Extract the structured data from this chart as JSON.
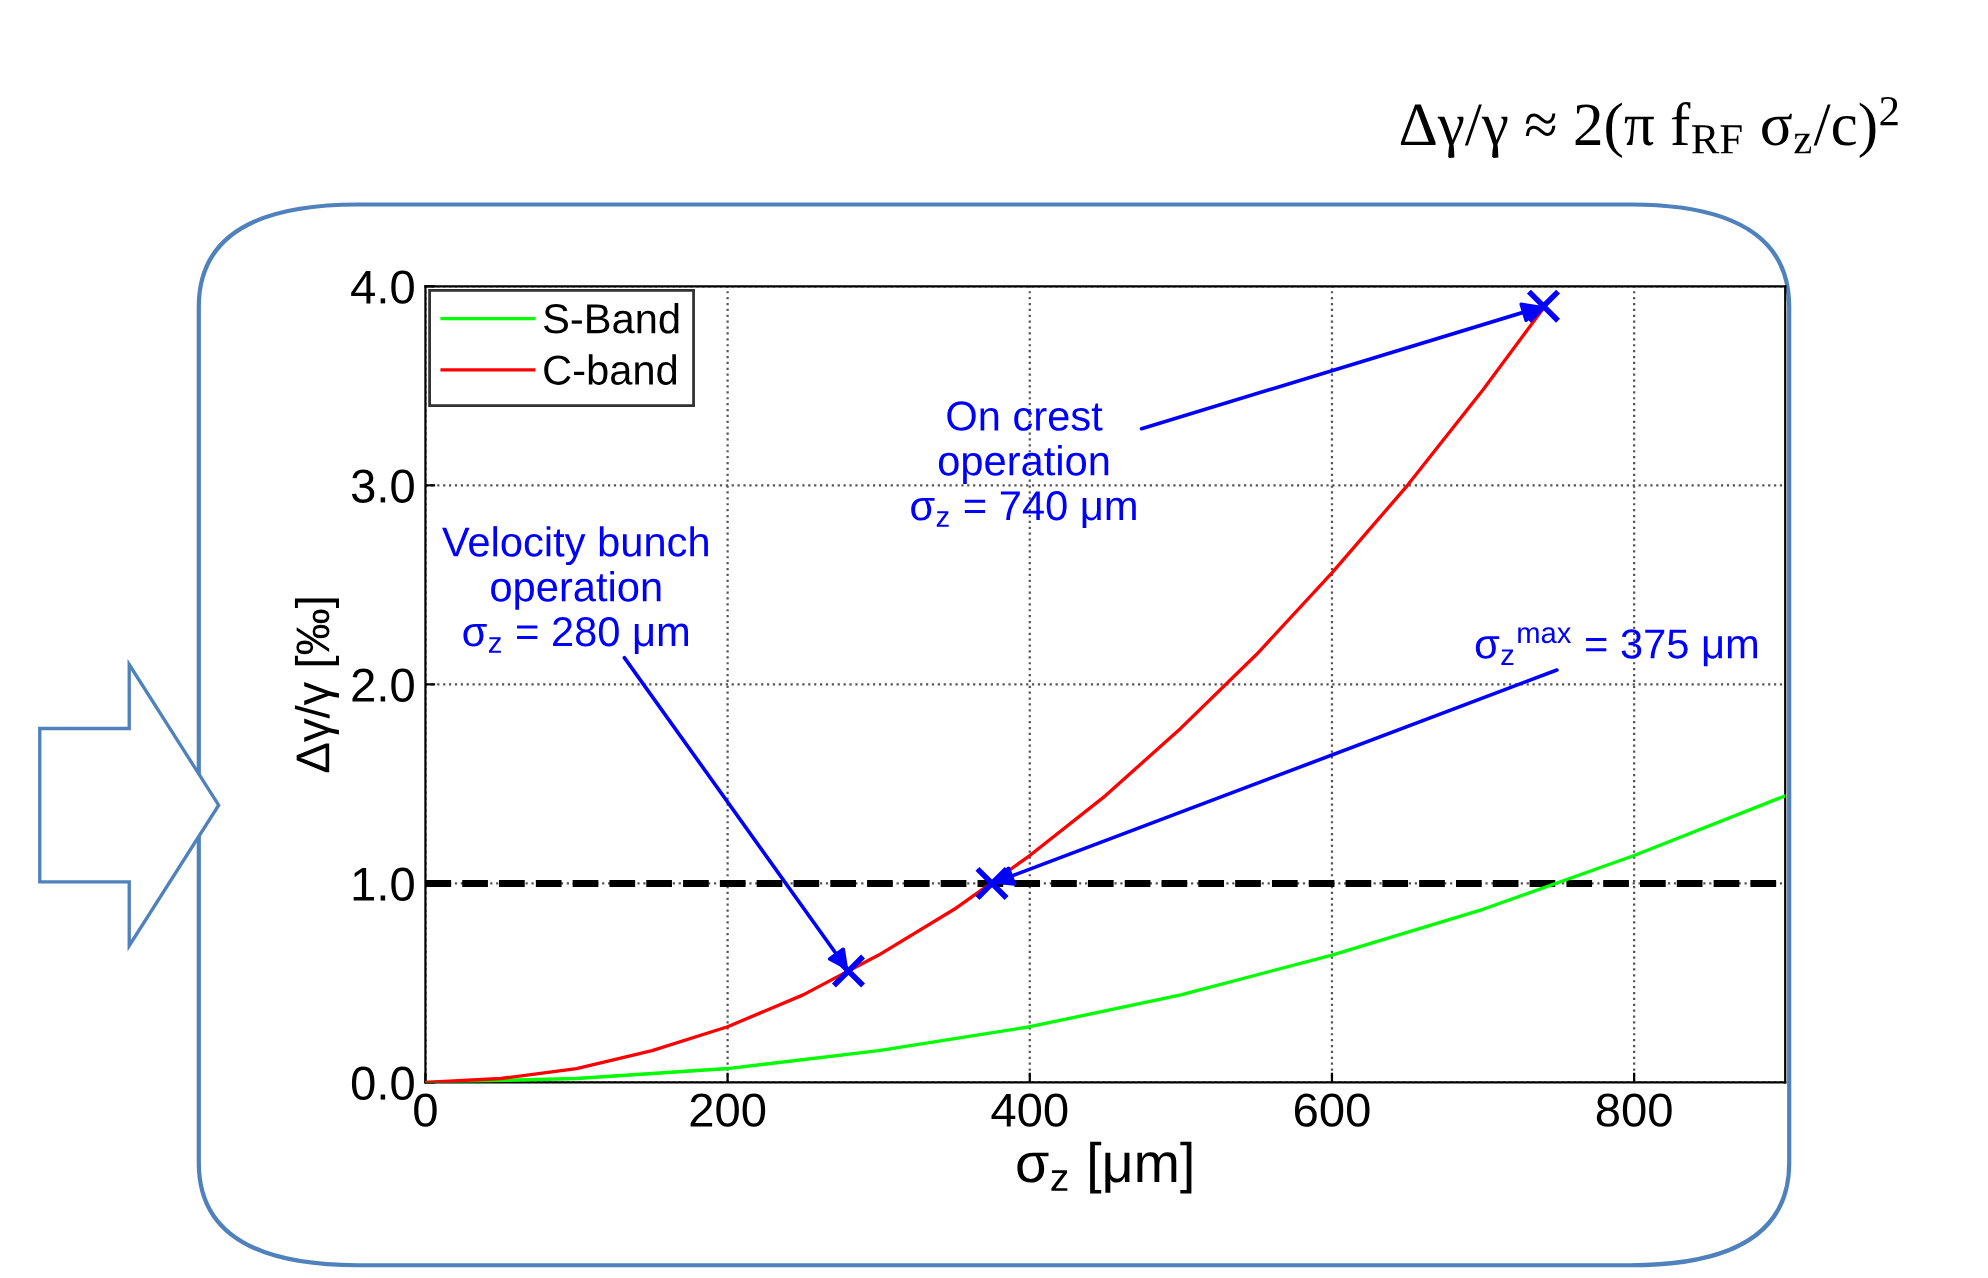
{
  "chart_data": {
    "type": "line",
    "xlabel": "σ$_{z}$ [μm]",
    "ylabel": "Δγ/γ [‰]",
    "xlim": [
      0,
      900
    ],
    "xticks": [
      0,
      200,
      400,
      600,
      800
    ],
    "ylim": [
      0,
      4.0
    ],
    "yticks": [
      {
        "value": 0,
        "label": "0.0"
      },
      {
        "value": 1,
        "label": "1.0"
      },
      {
        "value": 2,
        "label": "2.0"
      },
      {
        "value": 3,
        "label": "3.0"
      },
      {
        "value": 4,
        "label": "4.0"
      }
    ],
    "grid": true,
    "legend": "top left",
    "line_style": "solid",
    "series": [
      {
        "name": "S-Band",
        "color": "#00ff00",
        "x": [
          0,
          100,
          200,
          300,
          400,
          500,
          600,
          700,
          800,
          900
        ],
        "values": [
          0,
          0.02,
          0.07,
          0.16,
          0.28,
          0.44,
          0.64,
          0.87,
          1.14,
          1.44
        ]
      },
      {
        "name": "C-band",
        "color": "#ff0000",
        "x": [
          0,
          50,
          100,
          150,
          200,
          250,
          300,
          350,
          400,
          450,
          500,
          550,
          600,
          650,
          700,
          740
        ],
        "values": [
          0,
          0.02,
          0.07,
          0.16,
          0.28,
          0.44,
          0.64,
          0.87,
          1.14,
          1.44,
          1.78,
          2.15,
          2.56,
          3.0,
          3.48,
          3.89
        ]
      },
      {
        "type": "scatter",
        "marker": "cross",
        "color": "#0000ff",
        "x": [
          280,
          375,
          740
        ],
        "values": [
          0.56,
          1.0,
          3.9
        ]
      }
    ],
    "ref_lines": [
      {
        "axis": "y",
        "value": 1.0,
        "color": "#000000",
        "line_style": "dashed"
      }
    ],
    "annotations": [
      {
        "text": "Velocity bunch\noperation\nσ$_{z}$ = 280 μm",
        "x": 280,
        "y": 0.56
      },
      {
        "text": "σ$_{z}$$^{max}$ = 375 μm",
        "x": 375,
        "y": 1.0
      },
      {
        "text": "On crest\noperation\nσ$_{z}$ = 740 μm",
        "x": 740,
        "y": 3.9
      },
      "Δγ/γ ≈ 2(π f$_{RF}$ σ$_{z}$/c)$^{2}$"
    ]
  }
}
